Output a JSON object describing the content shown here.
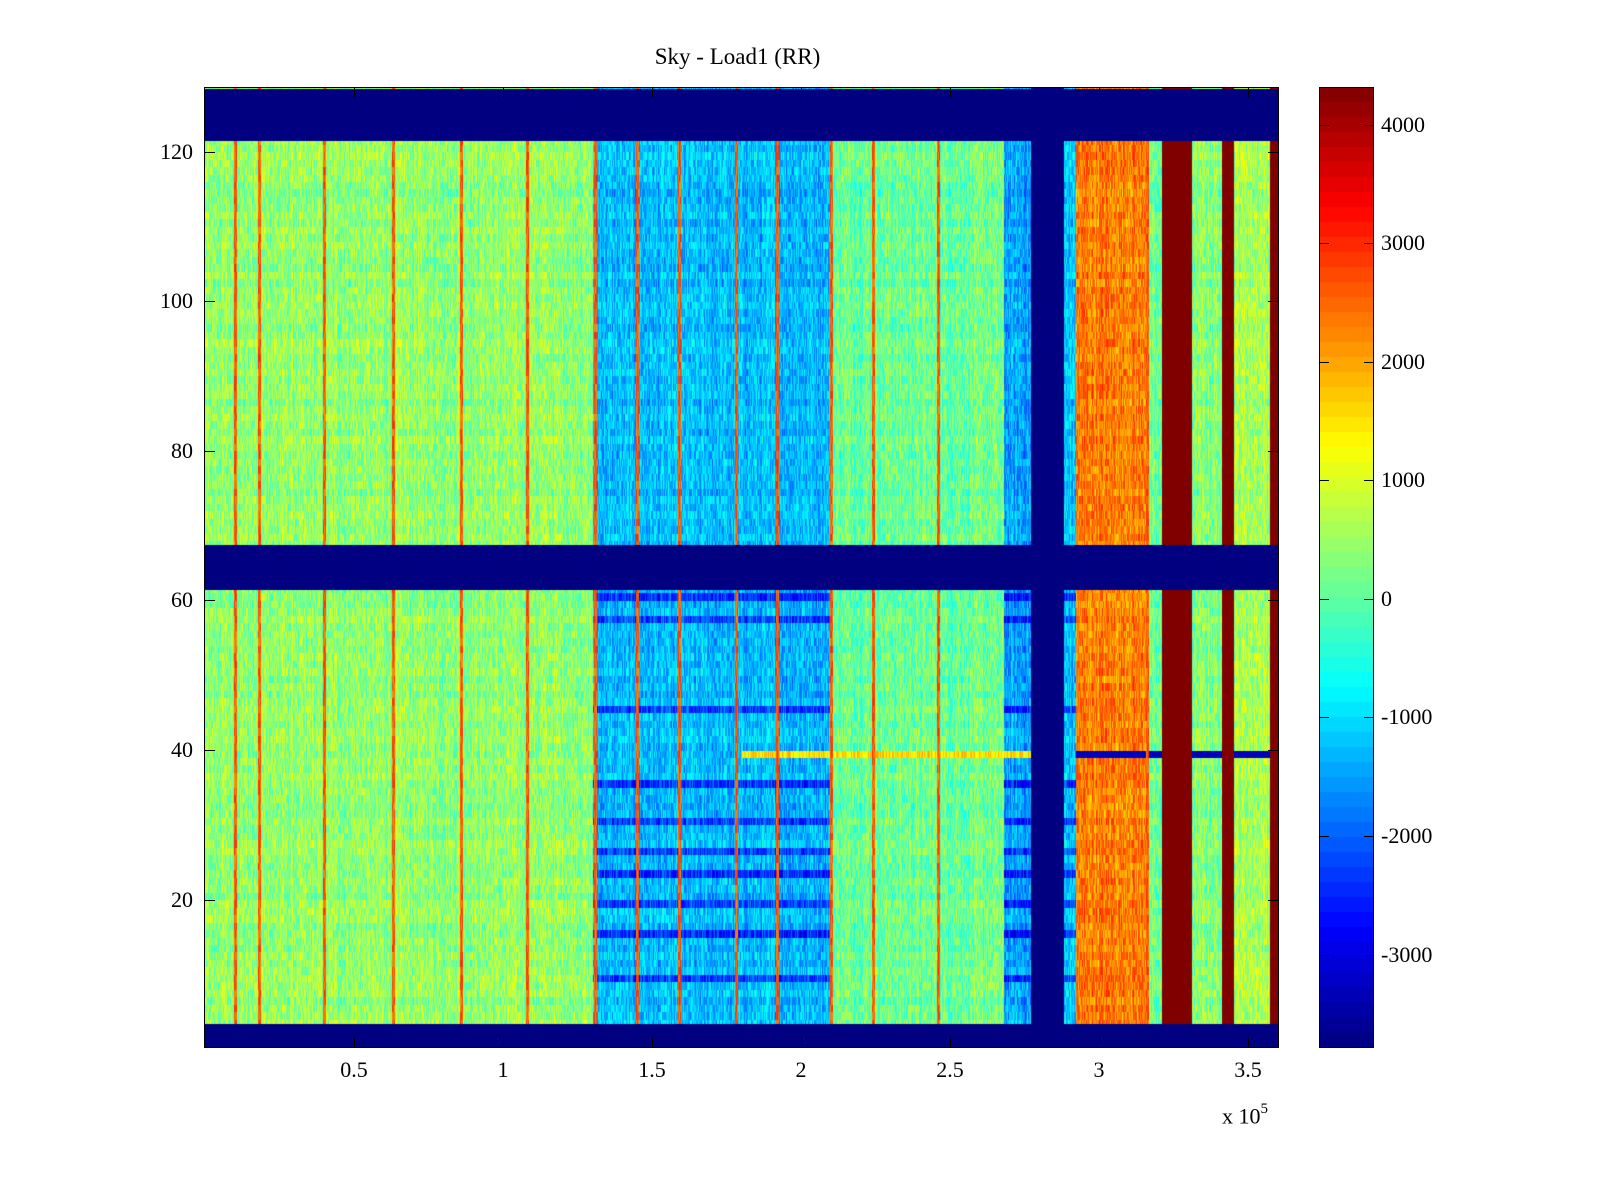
{
  "chart_data": {
    "type": "heatmap",
    "title": "Sky - Load1 (RR)",
    "xlabel": "",
    "ylabel": "",
    "x_multiplier_label": "x 10",
    "x_multiplier_exponent": "5",
    "xlim": [
      0,
      3.6
    ],
    "ylim": [
      0.3,
      128.5
    ],
    "x_ticks": [
      0.5,
      1,
      1.5,
      2,
      2.5,
      3,
      3.5
    ],
    "x_tick_labels": [
      "0.5",
      "1",
      "1.5",
      "2",
      "2.5",
      "3",
      "3.5"
    ],
    "y_ticks": [
      20,
      40,
      60,
      80,
      100,
      120
    ],
    "y_tick_labels": [
      "20",
      "40",
      "60",
      "80",
      "100",
      "120"
    ],
    "colormap": "jet",
    "clim": [
      -3780,
      4310
    ],
    "colorbar_ticks": [
      4000,
      3000,
      2000,
      1000,
      0,
      -1000,
      -2000,
      -3000
    ],
    "colorbar_tick_labels": [
      "4000",
      "3000",
      "2000",
      "1000",
      "0",
      "-1000",
      "-2000",
      "-3000"
    ],
    "grid": false,
    "masked_row_bands": [
      {
        "from": 0.3,
        "to": 3.5,
        "value": -3780
      },
      {
        "from": 61.5,
        "to": 67.5,
        "value": -3780
      },
      {
        "from": 121.5,
        "to": 128.5,
        "value": -3780
      }
    ],
    "column_regions": [
      {
        "x_from": 0.0,
        "x_to": 1.3,
        "mean": 400,
        "description_value": "baseline"
      },
      {
        "x_from": 1.3,
        "x_to": 2.1,
        "mean": -1300,
        "description_value": "low"
      },
      {
        "x_from": 2.1,
        "x_to": 2.68,
        "mean": 100,
        "description_value": "baseline"
      },
      {
        "x_from": 2.68,
        "x_to": 2.77,
        "mean": -1500,
        "description_value": "low"
      },
      {
        "x_from": 2.77,
        "x_to": 2.88,
        "mean": -3780,
        "description_value": "masked"
      },
      {
        "x_from": 2.88,
        "x_to": 2.92,
        "mean": -1200,
        "description_value": "low"
      },
      {
        "x_from": 2.92,
        "x_to": 3.16,
        "mean": 2300,
        "description_value": "high"
      },
      {
        "x_from": 3.16,
        "x_to": 3.21,
        "mean": 0,
        "description_value": "baseline"
      },
      {
        "x_from": 3.21,
        "x_to": 3.31,
        "mean": 4310,
        "description_value": "saturated"
      },
      {
        "x_from": 3.31,
        "x_to": 3.41,
        "mean": 300,
        "description_value": "baseline"
      },
      {
        "x_from": 3.41,
        "x_to": 3.45,
        "mean": 4310,
        "description_value": "saturated"
      },
      {
        "x_from": 3.45,
        "x_to": 3.57,
        "mean": 600,
        "description_value": "baseline"
      },
      {
        "x_from": 3.57,
        "x_to": 3.6,
        "mean": 4310,
        "description_value": "saturated"
      }
    ],
    "bright_columns_x": [
      0.1,
      0.18,
      0.4,
      0.63,
      0.86,
      1.08,
      1.31,
      1.45,
      1.59,
      1.78,
      1.92,
      2.1,
      2.24,
      2.46,
      3.16
    ],
    "anomalous_row_y": 39,
    "low_rows_in_low_region_y": [
      9,
      15,
      19,
      23,
      26,
      30,
      35,
      45,
      57,
      60
    ]
  }
}
